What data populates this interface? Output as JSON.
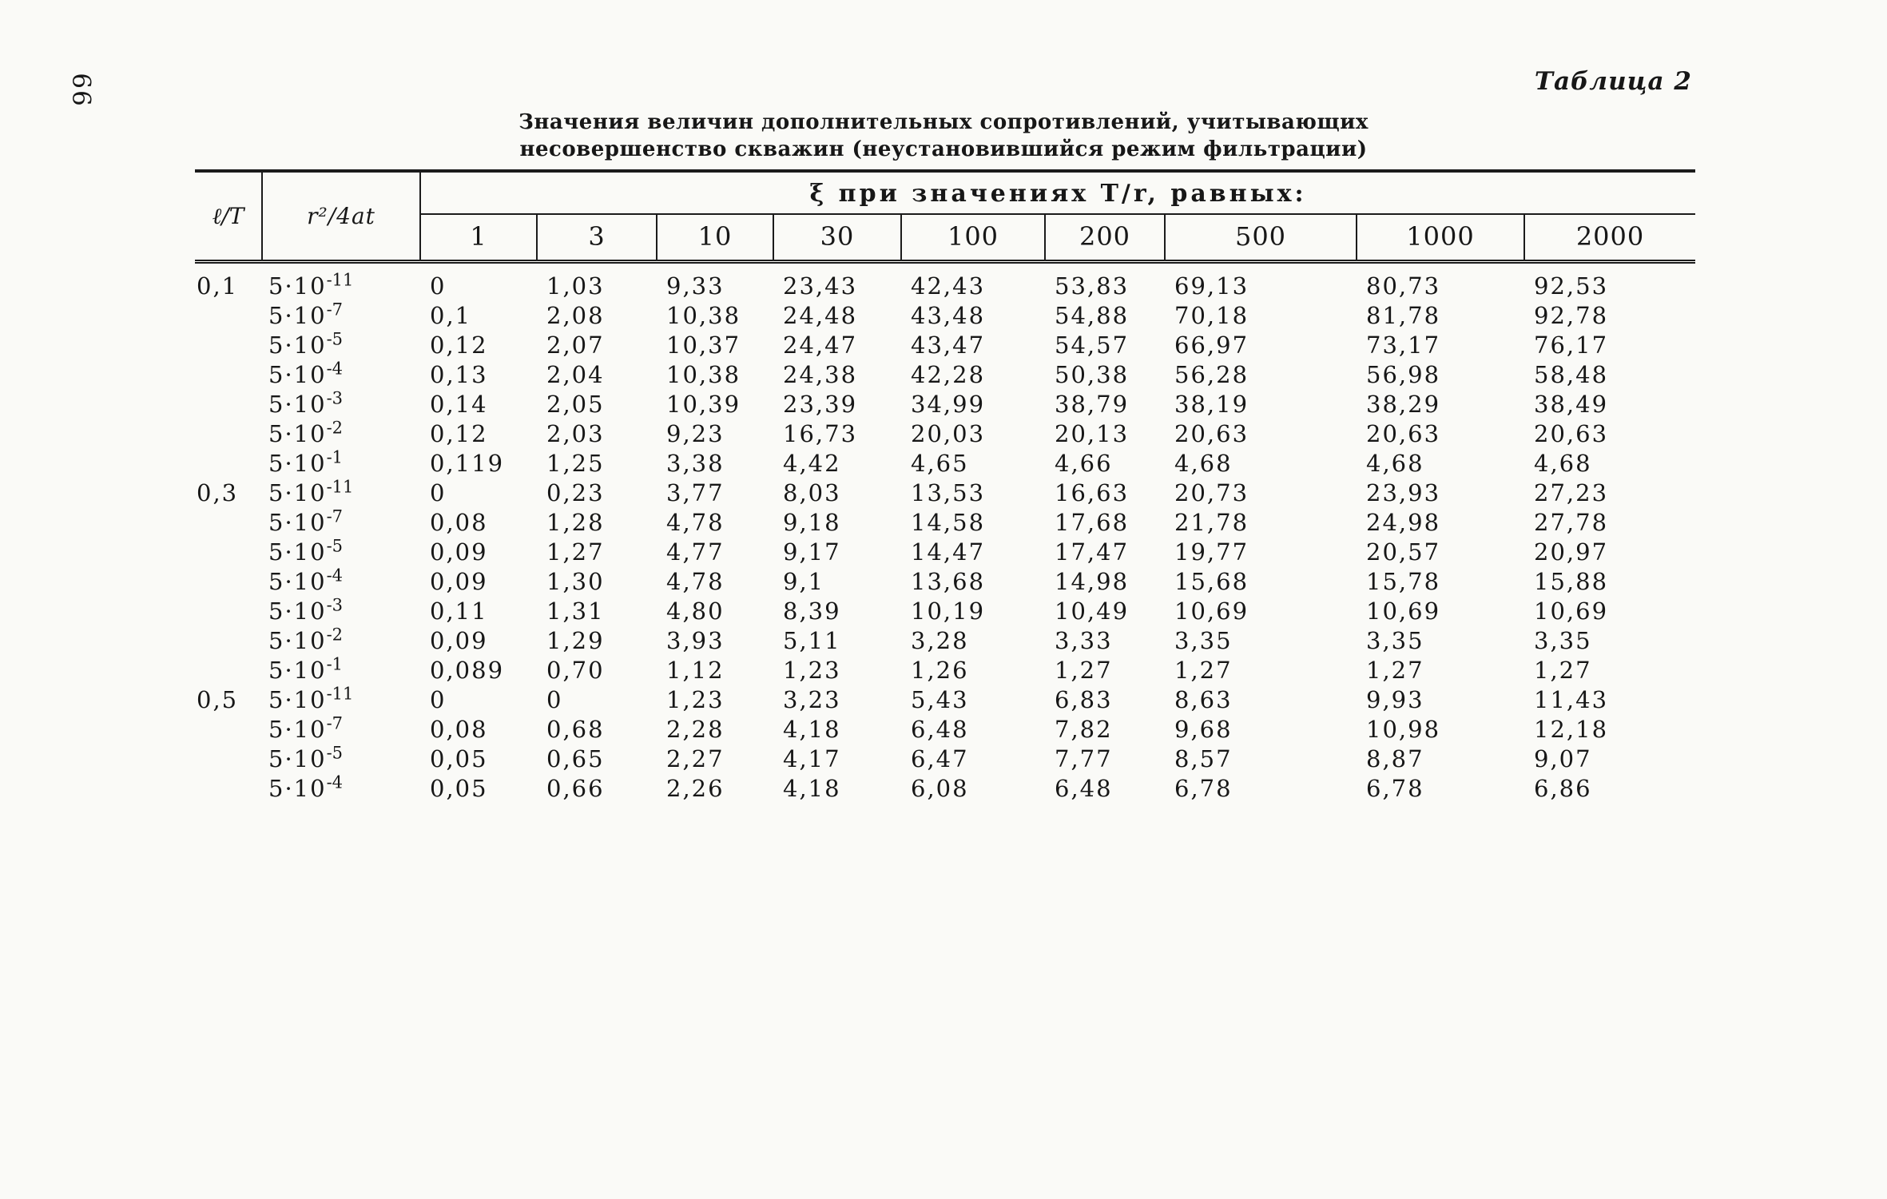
{
  "page": {
    "page_number": "66",
    "table_label": "Таблица 2",
    "heading_line1": "Значения величин дополнительных сопротивлений, учитывающих",
    "heading_line2": "несовершенство скважин (неустановившийся режим фильтрации)"
  },
  "table": {
    "col1_header": "ℓ/T",
    "col2_header": "r²/4at",
    "span_header": "ξ при значениях T/r, равных:",
    "mantissa": "5·10",
    "value_columns": [
      "1",
      "3",
      "10",
      "30",
      "100",
      "200",
      "500",
      "1000",
      "2000"
    ],
    "rows": [
      {
        "lt": "0,1",
        "exp": "-11",
        "values": [
          "0",
          "1,03",
          "9,33",
          "23,43",
          "42,43",
          "53,83",
          "69,13",
          "80,73",
          "92,53"
        ]
      },
      {
        "lt": "",
        "exp": "-7",
        "values": [
          "0,1",
          "2,08",
          "10,38",
          "24,48",
          "43,48",
          "54,88",
          "70,18",
          "81,78",
          "92,78"
        ]
      },
      {
        "lt": "",
        "exp": "-5",
        "values": [
          "0,12",
          "2,07",
          "10,37",
          "24,47",
          "43,47",
          "54,57",
          "66,97",
          "73,17",
          "76,17"
        ]
      },
      {
        "lt": "",
        "exp": "-4",
        "values": [
          "0,13",
          "2,04",
          "10,38",
          "24,38",
          "42,28",
          "50,38",
          "56,28",
          "56,98",
          "58,48"
        ]
      },
      {
        "lt": "",
        "exp": "-3",
        "values": [
          "0,14",
          "2,05",
          "10,39",
          "23,39",
          "34,99",
          "38,79",
          "38,19",
          "38,29",
          "38,49"
        ]
      },
      {
        "lt": "",
        "exp": "-2",
        "values": [
          "0,12",
          "2,03",
          "9,23",
          "16,73",
          "20,03",
          "20,13",
          "20,63",
          "20,63",
          "20,63"
        ]
      },
      {
        "lt": "",
        "exp": "-1",
        "values": [
          "0,119",
          "1,25",
          "3,38",
          "4,42",
          "4,65",
          "4,66",
          "4,68",
          "4,68",
          "4,68"
        ]
      },
      {
        "lt": "0,3",
        "exp": "-11",
        "values": [
          "0",
          "0,23",
          "3,77",
          "8,03",
          "13,53",
          "16,63",
          "20,73",
          "23,93",
          "27,23"
        ]
      },
      {
        "lt": "",
        "exp": "-7",
        "values": [
          "0,08",
          "1,28",
          "4,78",
          "9,18",
          "14,58",
          "17,68",
          "21,78",
          "24,98",
          "27,78"
        ]
      },
      {
        "lt": "",
        "exp": "-5",
        "values": [
          "0,09",
          "1,27",
          "4,77",
          "9,17",
          "14,47",
          "17,47",
          "19,77",
          "20,57",
          "20,97"
        ]
      },
      {
        "lt": "",
        "exp": "-4",
        "values": [
          "0,09",
          "1,30",
          "4,78",
          "9,1",
          "13,68",
          "14,98",
          "15,68",
          "15,78",
          "15,88"
        ]
      },
      {
        "lt": "",
        "exp": "-3",
        "values": [
          "0,11",
          "1,31",
          "4,80",
          "8,39",
          "10,19",
          "10,49",
          "10,69",
          "10,69",
          "10,69"
        ]
      },
      {
        "lt": "",
        "exp": "-2",
        "values": [
          "0,09",
          "1,29",
          "3,93",
          "5,11",
          "3,28",
          "3,33",
          "3,35",
          "3,35",
          "3,35"
        ]
      },
      {
        "lt": "",
        "exp": "-1",
        "values": [
          "0,089",
          "0,70",
          "1,12",
          "1,23",
          "1,26",
          "1,27",
          "1,27",
          "1,27",
          "1,27"
        ]
      },
      {
        "lt": "0,5",
        "exp": "-11",
        "values": [
          "0",
          "0",
          "1,23",
          "3,23",
          "5,43",
          "6,83",
          "8,63",
          "9,93",
          "11,43"
        ]
      },
      {
        "lt": "",
        "exp": "-7",
        "values": [
          "0,08",
          "0,68",
          "2,28",
          "4,18",
          "6,48",
          "7,82",
          "9,68",
          "10,98",
          "12,18"
        ]
      },
      {
        "lt": "",
        "exp": "-5",
        "values": [
          "0,05",
          "0,65",
          "2,27",
          "4,17",
          "6,47",
          "7,77",
          "8,57",
          "8,87",
          "9,07"
        ]
      },
      {
        "lt": "",
        "exp": "-4",
        "values": [
          "0,05",
          "0,66",
          "2,26",
          "4,18",
          "6,08",
          "6,48",
          "6,78",
          "6,78",
          "6,86"
        ]
      }
    ]
  }
}
